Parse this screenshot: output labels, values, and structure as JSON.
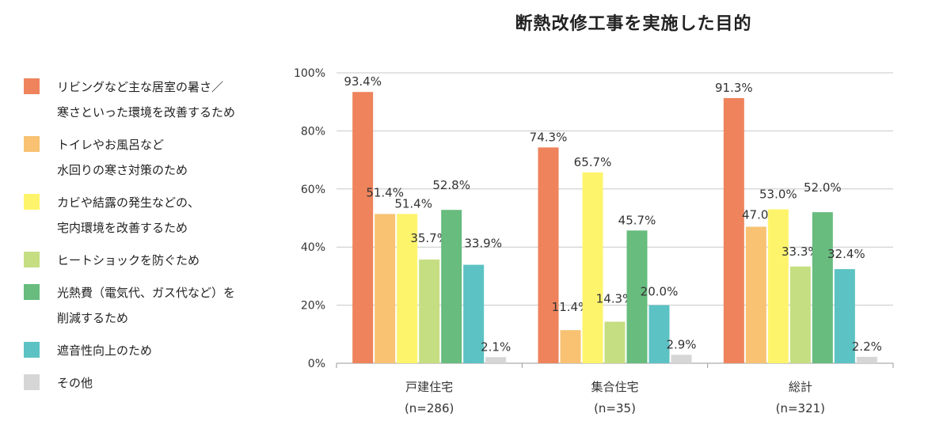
{
  "chart_data": {
    "type": "bar",
    "title": "断熱改修工事を実施した目的",
    "categories": [
      "戸建住宅",
      "集合住宅",
      "総計"
    ],
    "category_notes": [
      "(n=286)",
      "(n=35)",
      "(n=321)"
    ],
    "yticks": [
      "0%",
      "20%",
      "40%",
      "60%",
      "80%",
      "100%"
    ],
    "ylim": [
      0,
      100
    ],
    "grid": true,
    "legend_position": "left",
    "series": [
      {
        "name_lines": [
          "リビングなど主な居室の暑さ／",
          "寒さといった環境を改善するため"
        ],
        "color": "#EE835C",
        "values": [
          93.4,
          74.3,
          91.3
        ],
        "labels": [
          "93.4%",
          "74.3%",
          "91.3%"
        ]
      },
      {
        "name_lines": [
          "トイレやお風呂など",
          "水回りの寒さ対策のため"
        ],
        "color": "#F8C272",
        "values": [
          51.4,
          11.4,
          47.0
        ],
        "labels": [
          "51.4%",
          "11.4%",
          "47.0%"
        ]
      },
      {
        "name_lines": [
          "カビや結露の発生などの、",
          "宅内環境を改善するため"
        ],
        "color": "#FDF46C",
        "values": [
          51.4,
          65.7,
          53.0
        ],
        "labels": [
          "51.4%",
          "65.7%",
          "53.0%"
        ]
      },
      {
        "name_lines": [
          "ヒートショックを防ぐため"
        ],
        "color": "#C5DE82",
        "values": [
          35.7,
          14.3,
          33.3
        ],
        "labels": [
          "35.7%",
          "14.3%",
          "33.3%"
        ]
      },
      {
        "name_lines": [
          "光熱費（電気代、ガス代など）を",
          "削減するため"
        ],
        "color": "#67BC7E",
        "values": [
          52.8,
          45.7,
          52.0
        ],
        "labels": [
          "52.8%",
          "45.7%",
          "52.0%"
        ]
      },
      {
        "name_lines": [
          "遮音性向上のため"
        ],
        "color": "#5CC2C3",
        "values": [
          33.9,
          20.0,
          32.4
        ],
        "labels": [
          "33.9%",
          "20.0%",
          "32.4%"
        ]
      },
      {
        "name_lines": [
          "その他"
        ],
        "color": "#D6D6D6",
        "values": [
          2.1,
          2.9,
          2.2
        ],
        "labels": [
          "2.1%",
          "2.9%",
          "2.2%"
        ]
      }
    ]
  }
}
